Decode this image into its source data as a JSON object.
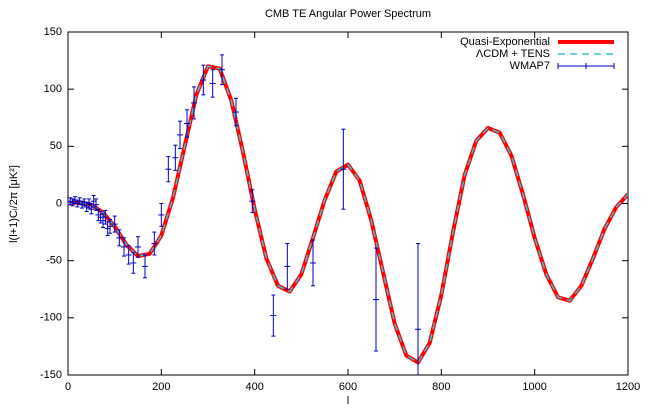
{
  "chart_data": {
    "type": "line",
    "title": "CMB TE Angular Power Spectrum",
    "xlabel": "l",
    "ylabel": "l(l+1)Cₗ/2π [μK²]",
    "xlim": [
      0,
      1200
    ],
    "ylim": [
      -150,
      150
    ],
    "xticks": [
      0,
      200,
      400,
      600,
      800,
      1000,
      1200
    ],
    "yticks": [
      -150,
      -100,
      -50,
      0,
      50,
      100,
      150
    ],
    "legend": "upper right",
    "x": [
      0,
      25,
      50,
      75,
      100,
      125,
      150,
      175,
      200,
      225,
      250,
      275,
      300,
      325,
      350,
      375,
      400,
      425,
      450,
      475,
      500,
      525,
      550,
      575,
      600,
      625,
      650,
      675,
      700,
      725,
      750,
      775,
      800,
      825,
      850,
      875,
      900,
      925,
      950,
      975,
      1000,
      1025,
      1050,
      1075,
      1100,
      1125,
      1150,
      1175,
      1200
    ],
    "series": [
      {
        "name": "Quasi-Exponential",
        "color": "#ff0000",
        "style": "solid",
        "values": [
          0,
          1,
          -1,
          -8,
          -20,
          -36,
          -46,
          -44,
          -28,
          5,
          50,
          95,
          120,
          118,
          90,
          45,
          -5,
          -48,
          -72,
          -77,
          -62,
          -30,
          3,
          28,
          34,
          20,
          -15,
          -60,
          -105,
          -133,
          -139,
          -122,
          -80,
          -25,
          25,
          55,
          66,
          62,
          42,
          8,
          -30,
          -62,
          -82,
          -85,
          -72,
          -48,
          -22,
          -3,
          8
        ]
      },
      {
        "name": "ΛCDM + TENS",
        "color": "#40c0d0",
        "style": "dashed",
        "values": [
          0,
          1,
          -1,
          -8,
          -20,
          -36,
          -46,
          -44,
          -28,
          5,
          50,
          95,
          120,
          118,
          90,
          45,
          -5,
          -48,
          -72,
          -77,
          -62,
          -30,
          3,
          28,
          34,
          20,
          -15,
          -60,
          -105,
          -133,
          -139,
          -122,
          -80,
          -25,
          25,
          55,
          66,
          62,
          42,
          8,
          -30,
          -62,
          -82,
          -85,
          -72,
          -48,
          -22,
          -3,
          8
        ]
      },
      {
        "name": "WMAP7",
        "color": "#0000c0",
        "style": "errorbars",
        "x": [
          5,
          10,
          15,
          20,
          25,
          30,
          35,
          40,
          45,
          50,
          55,
          60,
          65,
          70,
          75,
          80,
          85,
          90,
          100,
          110,
          120,
          130,
          140,
          150,
          165,
          185,
          200,
          215,
          230,
          240,
          255,
          270,
          290,
          310,
          330,
          360,
          395,
          440,
          470,
          525,
          590,
          660,
          750
        ],
        "values": [
          2,
          1,
          3,
          0,
          2,
          -1,
          1,
          -3,
          0,
          -5,
          2,
          -1,
          -10,
          -12,
          -15,
          -12,
          -22,
          -20,
          -18,
          -30,
          -38,
          -45,
          -52,
          -38,
          -55,
          -35,
          -10,
          30,
          40,
          60,
          70,
          88,
          108,
          105,
          117,
          80,
          2,
          -98,
          -55,
          -52,
          30,
          -84,
          -110
        ],
        "errors": [
          3,
          3,
          3,
          3,
          3,
          3,
          3,
          4,
          4,
          4,
          5,
          5,
          5,
          5,
          6,
          6,
          6,
          6,
          7,
          7,
          8,
          8,
          9,
          9,
          10,
          10,
          10,
          11,
          11,
          12,
          12,
          14,
          13,
          12,
          13,
          12,
          10,
          18,
          20,
          20,
          35,
          45,
          75
        ]
      }
    ]
  }
}
